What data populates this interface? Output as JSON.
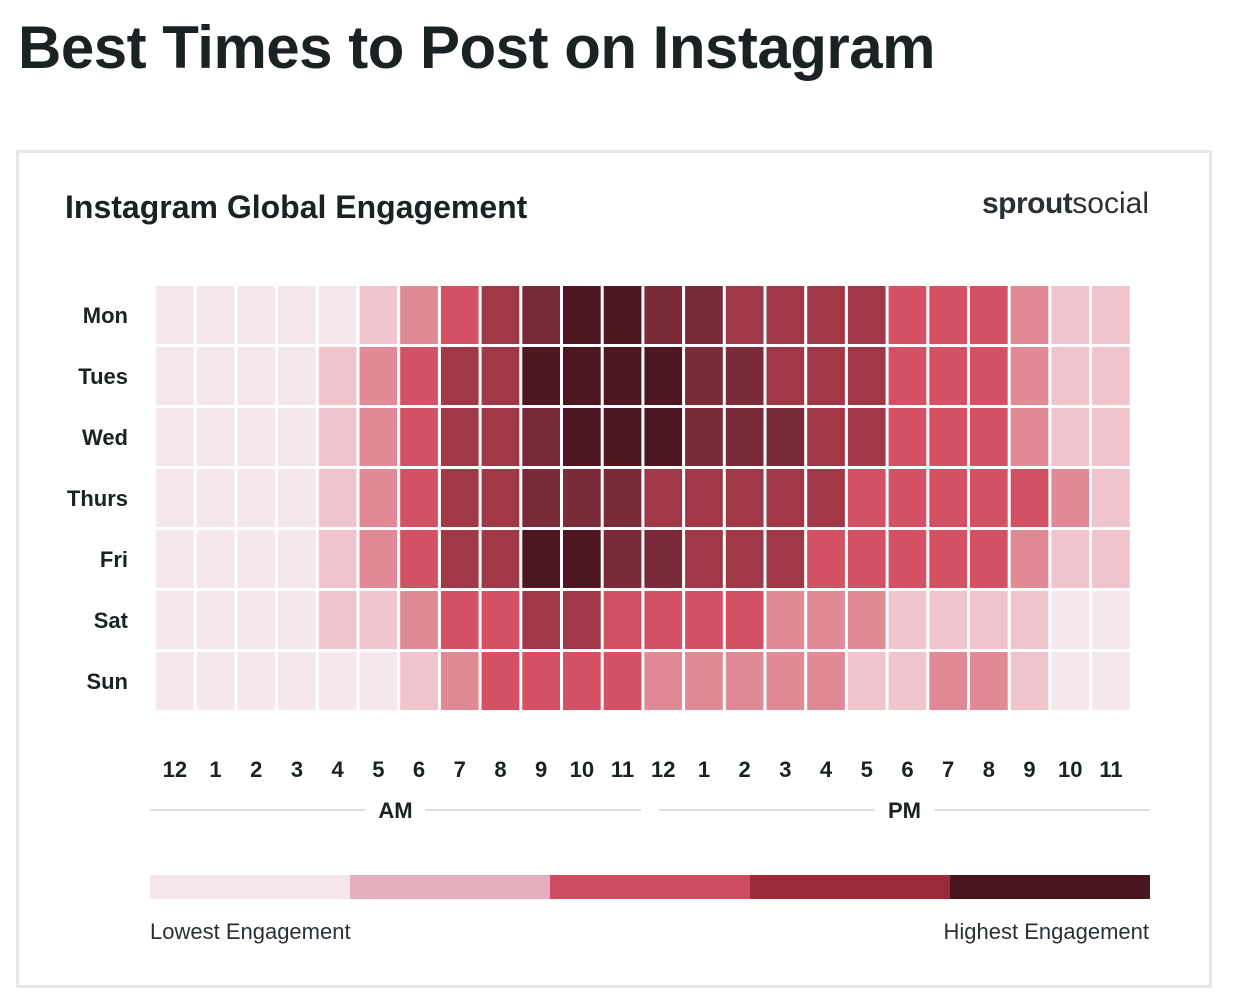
{
  "page": {
    "title": "Best Times to Post on Instagram"
  },
  "card": {
    "brand_bold": "sprout",
    "brand_light": "social",
    "legend_low": "Lowest Engagement",
    "legend_high": "Highest Engagement"
  },
  "chart_data": {
    "type": "heatmap",
    "title": "Instagram Global Engagement",
    "rows": [
      "Mon",
      "Tues",
      "Wed",
      "Thurs",
      "Fri",
      "Sat",
      "Sun"
    ],
    "columns": [
      "12",
      "1",
      "2",
      "3",
      "4",
      "5",
      "6",
      "7",
      "8",
      "9",
      "10",
      "11",
      "12",
      "1",
      "2",
      "3",
      "4",
      "5",
      "6",
      "7",
      "8",
      "9",
      "10",
      "11"
    ],
    "column_groups": [
      {
        "label": "AM",
        "start": 0,
        "end": 11
      },
      {
        "label": "PM",
        "start": 12,
        "end": 23
      }
    ],
    "scale": {
      "min": 0,
      "max": 7,
      "colors": [
        "#f5e8ec",
        "#efc4cc",
        "#e08a96",
        "#d35163",
        "#a13848",
        "#7a2a38",
        "#4d1620",
        "#3f1119"
      ]
    },
    "legend_colors": [
      "#f4e6eb",
      "#e6afbe",
      "#cf4c60",
      "#9b2a3a",
      "#4a1620"
    ],
    "values": [
      [
        0,
        0,
        0,
        0,
        0,
        1,
        2,
        3,
        4,
        5,
        6,
        6,
        5,
        5,
        4,
        4,
        4,
        4,
        3,
        3,
        3,
        2,
        1,
        1
      ],
      [
        0,
        0,
        0,
        0,
        1,
        2,
        3,
        4,
        4,
        6,
        6,
        6,
        6,
        5,
        5,
        4,
        4,
        4,
        3,
        3,
        3,
        2,
        1,
        1
      ],
      [
        0,
        0,
        0,
        0,
        1,
        2,
        3,
        4,
        4,
        5,
        6,
        6,
        6,
        5,
        5,
        5,
        4,
        4,
        3,
        3,
        3,
        2,
        1,
        1
      ],
      [
        0,
        0,
        0,
        0,
        1,
        2,
        3,
        4,
        4,
        5,
        5,
        5,
        4,
        4,
        4,
        4,
        4,
        3,
        3,
        3,
        3,
        3,
        2,
        1
      ],
      [
        0,
        0,
        0,
        0,
        1,
        2,
        3,
        4,
        4,
        6,
        6,
        5,
        5,
        4,
        4,
        4,
        3,
        3,
        3,
        3,
        3,
        2,
        1,
        1
      ],
      [
        0,
        0,
        0,
        0,
        1,
        1,
        2,
        3,
        3,
        4,
        4,
        3,
        3,
        3,
        3,
        2,
        2,
        2,
        1,
        1,
        1,
        1,
        0,
        0
      ],
      [
        0,
        0,
        0,
        0,
        0,
        0,
        1,
        2,
        3,
        3,
        3,
        3,
        2,
        2,
        2,
        2,
        2,
        1,
        1,
        2,
        2,
        1,
        0,
        0
      ]
    ]
  }
}
